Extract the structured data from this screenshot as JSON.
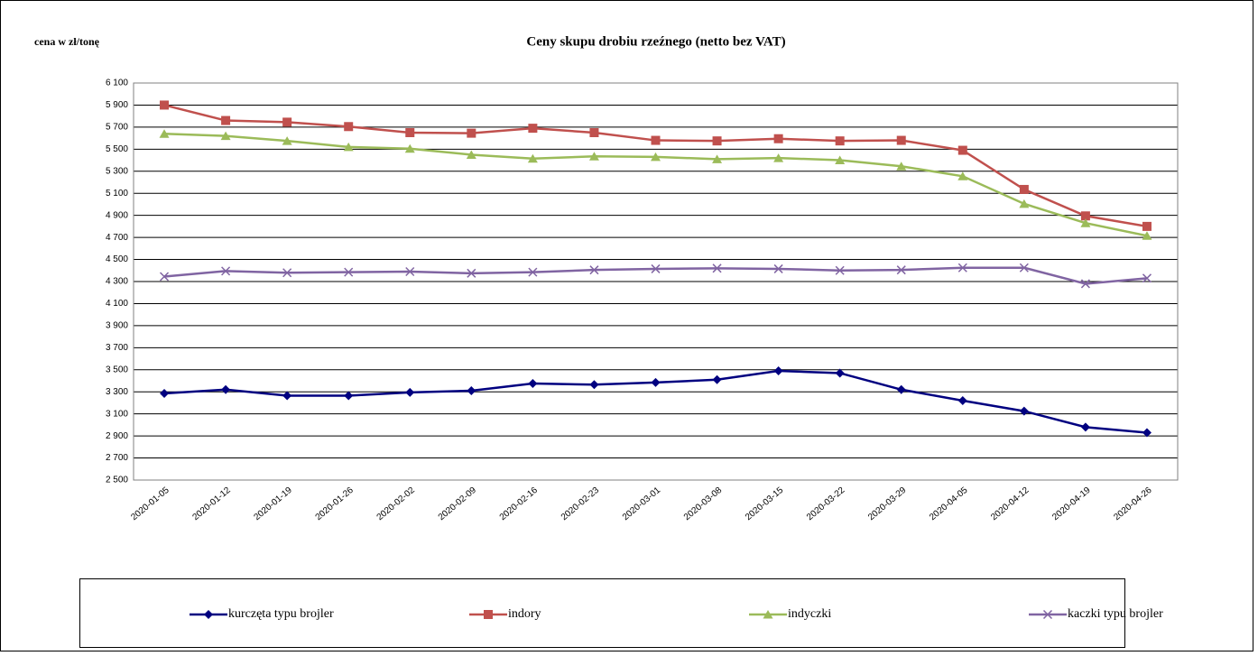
{
  "chart_data": {
    "type": "line",
    "title": "Ceny skupu drobiu rzeźnego (netto bez VAT)",
    "y_axis_label": "cena w zł/tonę",
    "categories": [
      "2020-01-05",
      "2020-01-12",
      "2020-01-19",
      "2020-01-26",
      "2020-02-02",
      "2020-02-09",
      "2020-02-16",
      "2020-02-23",
      "2020-03-01",
      "2020-03-08",
      "2020-03-15",
      "2020-03-22",
      "2020-03-29",
      "2020-04-05",
      "2020-04-12",
      "2020-04-19",
      "2020-04-26"
    ],
    "series": [
      {
        "name": "kurczęta typu brojler",
        "color": "#000080",
        "values": [
          3285,
          3320,
          3265,
          3265,
          3295,
          3310,
          3375,
          3365,
          3385,
          3410,
          3490,
          3470,
          3320,
          3220,
          3125,
          2980,
          2930
        ]
      },
      {
        "name": "indory",
        "color": "#c0504d",
        "values": [
          5900,
          5760,
          5745,
          5705,
          5650,
          5645,
          5690,
          5650,
          5580,
          5575,
          5595,
          5575,
          5580,
          5490,
          5135,
          4895,
          4800
        ]
      },
      {
        "name": "indyczki",
        "color": "#9bbb59",
        "values": [
          5640,
          5620,
          5575,
          5520,
          5505,
          5450,
          5415,
          5435,
          5430,
          5410,
          5420,
          5400,
          5345,
          5255,
          5005,
          4830,
          4715
        ]
      },
      {
        "name": "kaczki typu brojler",
        "color": "#8064a2",
        "values": [
          4345,
          4395,
          4380,
          4385,
          4390,
          4375,
          4385,
          4405,
          4415,
          4420,
          4415,
          4400,
          4405,
          4425,
          4425,
          4280,
          4330
        ]
      }
    ],
    "ylim": [
      2500,
      6100
    ],
    "yticks": [
      {
        "value": 2500,
        "label": "2 500"
      },
      {
        "value": 2700,
        "label": "2 700"
      },
      {
        "value": 2900,
        "label": "2 900"
      },
      {
        "value": 3100,
        "label": "3 100"
      },
      {
        "value": 3300,
        "label": "3 300"
      },
      {
        "value": 3500,
        "label": "3 500"
      },
      {
        "value": 3700,
        "label": "3 700"
      },
      {
        "value": 3900,
        "label": "3 900"
      },
      {
        "value": 4100,
        "label": "4 100"
      },
      {
        "value": 4300,
        "label": "4 300"
      },
      {
        "value": 4500,
        "label": "4 500"
      },
      {
        "value": 4700,
        "label": "4 700"
      },
      {
        "value": 4900,
        "label": "4 900"
      },
      {
        "value": 5100,
        "label": "5 100"
      },
      {
        "value": 5300,
        "label": "5 300"
      },
      {
        "value": 5500,
        "label": "5 500"
      },
      {
        "value": 5700,
        "label": "5 700"
      },
      {
        "value": 5900,
        "label": "5 900"
      },
      {
        "value": 6100,
        "label": "6 100"
      }
    ],
    "grid": true,
    "legend": "bottom"
  }
}
